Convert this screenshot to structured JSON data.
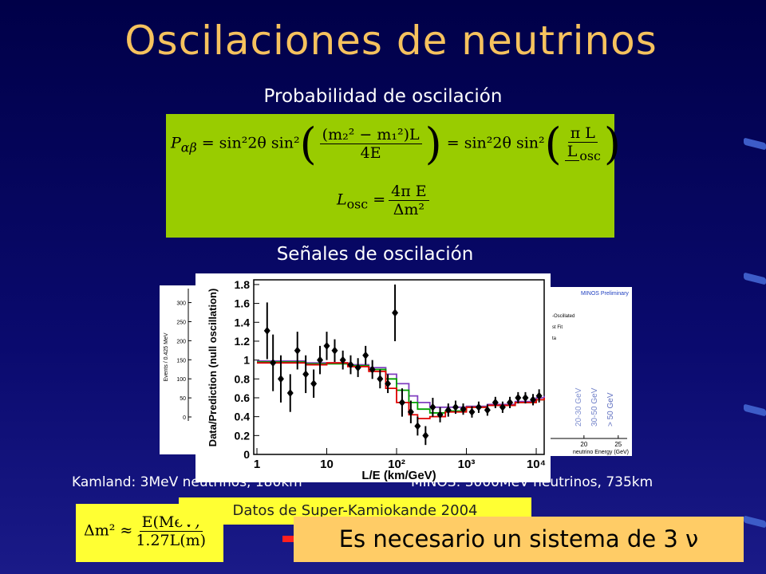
{
  "title": "Oscilaciones de neutrinos",
  "subtitle_probability": "Probabilidad de oscilación",
  "formula_probability": {
    "lhs": "P",
    "lhs_sub": "αβ",
    "eq1": "= sin²2θ sin²",
    "num1": "(m₂² − m₁²)L",
    "den1": "4E",
    "eq2": "= sin²2θ sin²",
    "num2": "π L",
    "den2": "L",
    "den2_sub": "osc",
    "losc": "L",
    "losc_sub": "osc",
    "eq3": "=",
    "num3": "4π E",
    "den3": "Δm²"
  },
  "subtitle_signals": "Señales de oscilación",
  "caption_kamland": "Kamland:  3MeV neutrinos, 180km",
  "caption_minos": "MINOS:  3000MeV neutrinos, 735km",
  "caption_superk": "Datos de Super-Kamiokande 2004",
  "formula_dm2": {
    "lhs": "Δm² ≈",
    "num": "E(MeV)",
    "den": "1.27L(m)"
  },
  "conclusion": "Es necesario un sistema de 3 ν",
  "chart_data": [
    {
      "type": "histogram",
      "y_label": "Events / 0.425 MeV",
      "ylim": [
        0,
        320
      ],
      "yticks": [
        0,
        50,
        100,
        150,
        200,
        250,
        300
      ]
    },
    {
      "type": "errorbar",
      "x_label": "L/E (km/GeV)",
      "y_label": "Data/Prediction (null oscillation)",
      "log_x": true,
      "xlim": [
        0.9,
        13000
      ],
      "xticks": [
        1,
        10,
        {
          "value": 100,
          "label": "10²"
        },
        {
          "value": 1000,
          "label": "10³"
        },
        {
          "value": 10000,
          "label": "10⁴"
        }
      ],
      "ylim": [
        0,
        1.85
      ],
      "yticks": [
        0,
        0.2,
        0.4,
        0.6,
        0.8,
        1,
        1.2,
        1.4,
        1.6,
        1.8
      ],
      "series": [
        {
          "color": "#000000",
          "x": [
            1.4,
            1.7,
            2.2,
            3,
            3.8,
            5,
            6.5,
            8,
            10,
            13,
            17,
            22,
            28,
            36,
            45,
            58,
            75,
            95,
            120,
            160,
            200,
            260,
            330,
            420,
            550,
            700,
            900,
            1200,
            1500,
            2000,
            2600,
            3300,
            4200,
            5500,
            7000,
            9000,
            11000
          ],
          "y": [
            1.31,
            0.97,
            0.8,
            0.65,
            1.1,
            0.85,
            0.75,
            1.0,
            1.15,
            1.1,
            1.0,
            0.95,
            0.92,
            1.05,
            0.9,
            0.8,
            0.75,
            1.5,
            0.55,
            0.45,
            0.3,
            0.2,
            0.5,
            0.42,
            0.47,
            0.5,
            0.48,
            0.45,
            0.5,
            0.47,
            0.55,
            0.5,
            0.55,
            0.6,
            0.6,
            0.58,
            0.62
          ],
          "err": [
            0.3,
            0.3,
            0.25,
            0.2,
            0.2,
            0.2,
            0.15,
            0.15,
            0.15,
            0.12,
            0.1,
            0.1,
            0.1,
            0.1,
            0.1,
            0.1,
            0.1,
            0.3,
            0.15,
            0.12,
            0.1,
            0.1,
            0.1,
            0.08,
            0.07,
            0.07,
            0.06,
            0.06,
            0.06,
            0.06,
            0.06,
            0.06,
            0.06,
            0.06,
            0.06,
            0.06,
            0.07
          ]
        },
        {
          "color": "#e00000",
          "x": [
            1,
            5,
            10,
            20,
            40,
            70,
            100,
            150,
            200,
            300,
            500,
            1000,
            2000,
            5000,
            10000,
            13000
          ],
          "y": [
            0.97,
            0.95,
            0.97,
            0.93,
            0.88,
            0.7,
            0.55,
            0.42,
            0.38,
            0.4,
            0.45,
            0.5,
            0.52,
            0.55,
            0.58,
            0.6
          ]
        },
        {
          "color": "#00a000",
          "x": [
            1,
            5,
            10,
            20,
            40,
            70,
            100,
            150,
            200,
            300,
            500,
            1000,
            2000,
            5000,
            10000,
            13000
          ],
          "y": [
            0.98,
            0.96,
            0.96,
            0.94,
            0.9,
            0.8,
            0.68,
            0.55,
            0.48,
            0.44,
            0.46,
            0.5,
            0.52,
            0.55,
            0.58,
            0.6
          ]
        },
        {
          "color": "#8040c0",
          "x": [
            1,
            5,
            10,
            20,
            40,
            70,
            100,
            150,
            200,
            300,
            500,
            1000,
            2000,
            5000,
            10000,
            13000
          ],
          "y": [
            0.99,
            0.97,
            0.97,
            0.95,
            0.92,
            0.85,
            0.75,
            0.62,
            0.55,
            0.5,
            0.5,
            0.51,
            0.53,
            0.56,
            0.6,
            0.62
          ]
        }
      ]
    },
    {
      "type": "histogram",
      "title": "MINOS Preliminary",
      "legend": [
        "-Oscillated",
        "st Fit",
        "ta"
      ],
      "annotations": [
        "20-30 GeV",
        "30-50 GeV",
        "> 50 GeV"
      ],
      "x_label": "neutrino Energy (GeV)",
      "xlim": [
        0,
        27
      ],
      "xticks": [
        20,
        25
      ]
    }
  ]
}
